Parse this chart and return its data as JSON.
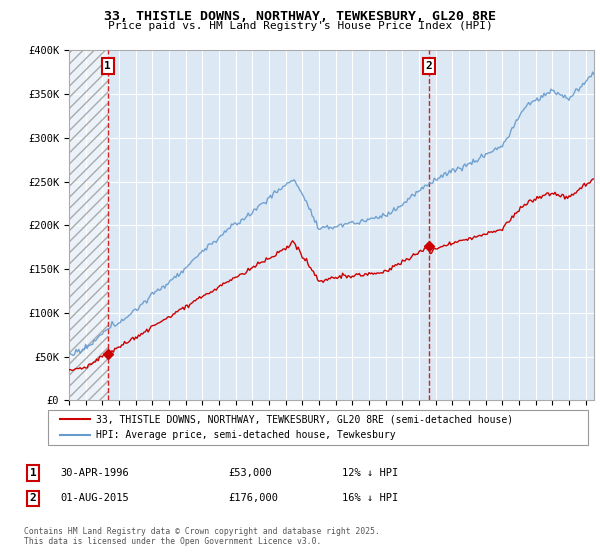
{
  "title1": "33, THISTLE DOWNS, NORTHWAY, TEWKESBURY, GL20 8RE",
  "title2": "Price paid vs. HM Land Registry's House Price Index (HPI)",
  "xlim_start": 1994.0,
  "xlim_end": 2025.5,
  "ylim": [
    0,
    400000
  ],
  "yticks": [
    0,
    50000,
    100000,
    150000,
    200000,
    250000,
    300000,
    350000,
    400000
  ],
  "ytick_labels": [
    "£0",
    "£50K",
    "£100K",
    "£150K",
    "£200K",
    "£250K",
    "£300K",
    "£350K",
    "£400K"
  ],
  "legend1_label": "33, THISTLE DOWNS, NORTHWAY, TEWKESBURY, GL20 8RE (semi-detached house)",
  "legend2_label": "HPI: Average price, semi-detached house, Tewkesbury",
  "sale1_date": 1996.33,
  "sale1_price": 53000,
  "sale1_label": "1",
  "sale2_date": 2015.58,
  "sale2_price": 176000,
  "sale2_label": "2",
  "footer": "Contains HM Land Registry data © Crown copyright and database right 2025.\nThis data is licensed under the Open Government Licence v3.0.",
  "red_color": "#cc0000",
  "blue_color": "#6699cc",
  "bg_color": "#dce9f5",
  "grid_color": "#ffffff",
  "sale_vline_color": "#cc0000"
}
